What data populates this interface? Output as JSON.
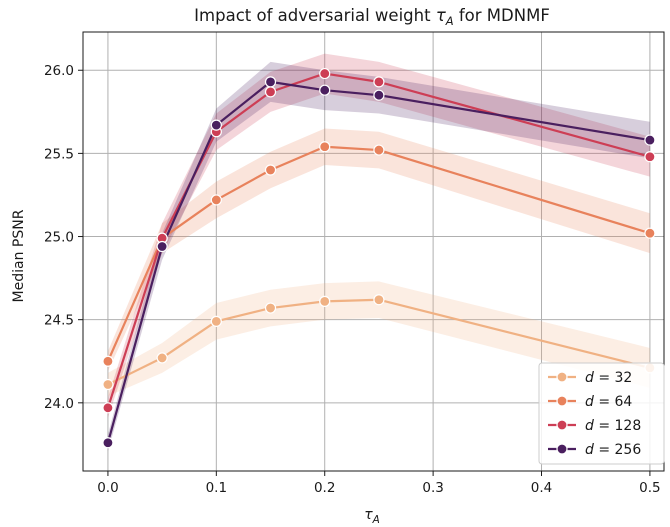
{
  "chart_data": {
    "type": "line",
    "title": "Impact of adversarial weight τ_A for MDNMF",
    "title_main": "Impact of adversarial weight ",
    "title_symbol": "τ",
    "title_sub": "A",
    "title_tail": " for MDNMF",
    "xlabel_symbol": "τ",
    "xlabel_sub": "A",
    "ylabel": "Median PSNR",
    "x": [
      0.0,
      0.05,
      0.1,
      0.15,
      0.2,
      0.25,
      0.5
    ],
    "x_ticks": [
      0.0,
      0.1,
      0.2,
      0.3,
      0.4,
      0.5
    ],
    "x_tick_labels": [
      "0.0",
      "0.1",
      "0.2",
      "0.3",
      "0.4",
      "0.5"
    ],
    "y_ticks": [
      24.0,
      24.5,
      25.0,
      25.5,
      26.0
    ],
    "y_tick_labels": [
      "24.0",
      "24.5",
      "25.0",
      "25.5",
      "26.0"
    ],
    "xlim": [
      -0.023,
      0.513
    ],
    "ylim": [
      23.59,
      26.23
    ],
    "grid": true,
    "legend_position": "bottom-right",
    "series": [
      {
        "name": "d = 32",
        "legend_var": "d",
        "legend_eq": " = 32",
        "color": "#f0b183",
        "values": [
          24.11,
          24.27,
          24.49,
          24.57,
          24.61,
          24.62,
          24.21
        ],
        "band_halfwidth": [
          0.07,
          0.09,
          0.11,
          0.11,
          0.11,
          0.11,
          0.12
        ]
      },
      {
        "name": "d = 64",
        "legend_var": "d",
        "legend_eq": " = 64",
        "color": "#e8825c",
        "values": [
          24.25,
          24.99,
          25.22,
          25.4,
          25.54,
          25.52,
          25.02
        ],
        "band_halfwidth": [
          0.06,
          0.09,
          0.11,
          0.11,
          0.11,
          0.11,
          0.12
        ]
      },
      {
        "name": "d = 128",
        "legend_var": "d",
        "legend_eq": " = 128",
        "color": "#cd3e55",
        "values": [
          23.97,
          24.99,
          25.63,
          25.87,
          25.98,
          25.93,
          25.48
        ],
        "band_halfwidth": [
          0.06,
          0.09,
          0.11,
          0.12,
          0.12,
          0.12,
          0.12
        ]
      },
      {
        "name": "d = 256",
        "legend_var": "d",
        "legend_eq": " = 256",
        "color": "#4a1f5f",
        "values": [
          23.76,
          24.94,
          25.67,
          25.93,
          25.88,
          25.85,
          25.58
        ],
        "band_halfwidth": [
          0.05,
          0.08,
          0.1,
          0.12,
          0.12,
          0.11,
          0.11
        ]
      }
    ]
  }
}
